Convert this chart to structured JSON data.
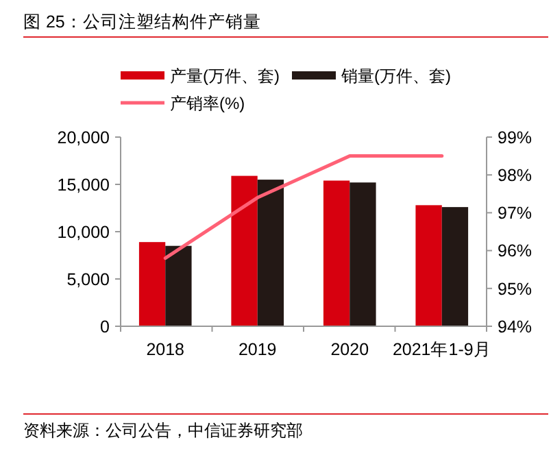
{
  "chart_data": {
    "type": "bar",
    "title": "图 25：公司注塑结构件产销量",
    "categories": [
      "2018",
      "2019",
      "2020",
      "2021年1-9月"
    ],
    "series": [
      {
        "name": "产量(万件、套)",
        "color": "#d7000f",
        "values": [
          8900,
          15900,
          15400,
          12800
        ]
      },
      {
        "name": "销量(万件、套)",
        "color": "#231815",
        "values": [
          8500,
          15500,
          15200,
          12600
        ]
      },
      {
        "name": "产销率(%)",
        "type": "line",
        "axis": "y2",
        "color": "#ff6176",
        "values": [
          95.8,
          97.4,
          98.5,
          98.5
        ]
      }
    ],
    "ylim": [
      0,
      20000
    ],
    "yticks": [
      {
        "value": 0,
        "label": "0"
      },
      {
        "value": 5000,
        "label": "5,000"
      },
      {
        "value": 10000,
        "label": "10,000"
      },
      {
        "value": 15000,
        "label": "15,000"
      },
      {
        "value": 20000,
        "label": "20,000"
      }
    ],
    "y2lim": [
      94,
      99
    ],
    "y2ticks": [
      {
        "value": 94,
        "label": "94%"
      },
      {
        "value": 95,
        "label": "95%"
      },
      {
        "value": 96,
        "label": "96%"
      },
      {
        "value": 97,
        "label": "97%"
      },
      {
        "value": 98,
        "label": "98%"
      },
      {
        "value": 99,
        "label": "99%"
      }
    ],
    "legend": "top",
    "grid": false,
    "annotations": [
      "资料来源：公司公告，中信证券研究部"
    ]
  }
}
